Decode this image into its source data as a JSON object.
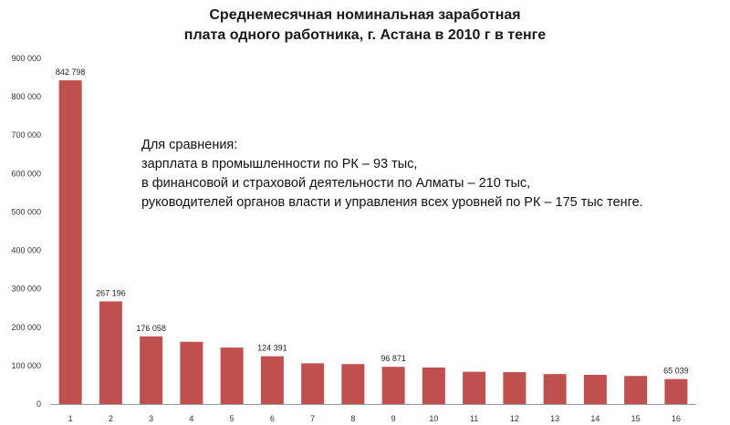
{
  "chart_data": {
    "type": "bar",
    "title_lines": [
      "Среднемесячная номинальная заработная",
      "плата одного работника, г. Астана в 2010 г в тенге"
    ],
    "xlabel": "",
    "ylabel": "",
    "categories": [
      "1",
      "2",
      "3",
      "4",
      "5",
      "6",
      "7",
      "8",
      "9",
      "10",
      "11",
      "12",
      "13",
      "14",
      "15",
      "16"
    ],
    "values": [
      842798,
      267196,
      176058,
      162000,
      147000,
      124391,
      106000,
      104000,
      96871,
      95000,
      84000,
      83000,
      78000,
      76000,
      73000,
      65039
    ],
    "data_labels": [
      {
        "index": 0,
        "text": "842 798"
      },
      {
        "index": 1,
        "text": "267 196"
      },
      {
        "index": 2,
        "text": "176 058"
      },
      {
        "index": 5,
        "text": "124 391"
      },
      {
        "index": 8,
        "text": "96 871"
      },
      {
        "index": 15,
        "text": "65 039"
      }
    ],
    "yticks": [
      "0",
      "100 000",
      "200 000",
      "300 000",
      "400 000",
      "500 000",
      "600 000",
      "700 000",
      "800 000",
      "900 000"
    ],
    "ylim": [
      0,
      900000
    ],
    "grid": false,
    "legend": "none",
    "bar_color": "#c0504d",
    "annotation_lines": [
      "Для сравнения:",
      "зарплата в промышленности  по РК – 93 тыс,",
      "в финансовой  и страховой деятельности  по Алматы – 210 тыс,",
      "руководителей  органов власти и управления всех уровней по РК – 175 тыс тенге."
    ]
  }
}
